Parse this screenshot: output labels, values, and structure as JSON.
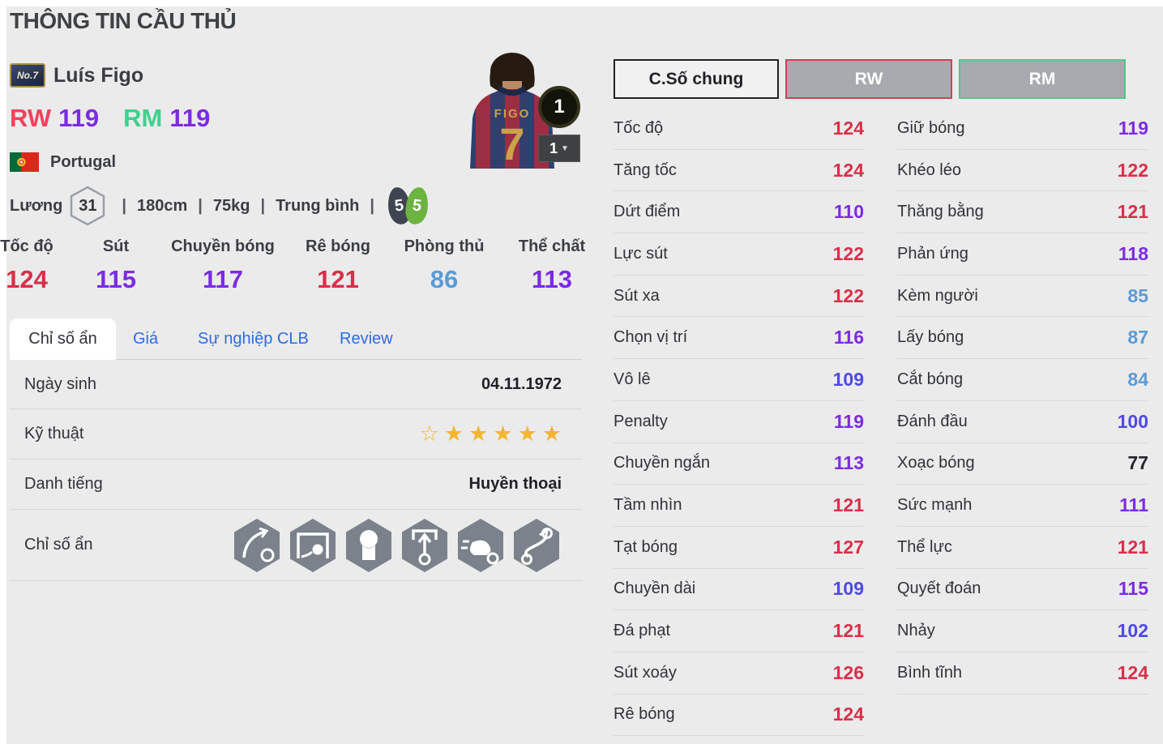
{
  "page": {
    "title": "THÔNG TIN CẦU THỦ"
  },
  "player": {
    "badge": "No.7",
    "name": "Luís Figo",
    "positions": [
      {
        "label": "RW",
        "value": "119"
      },
      {
        "label": "RM",
        "value": "119"
      }
    ],
    "nation": "Portugal",
    "wage_label": "Lương",
    "wage": "31",
    "height": "180cm",
    "weight": "75kg",
    "body_type": "Trung bình",
    "separator": "|",
    "weak_foot_left": "5",
    "weak_foot_right": "5",
    "jersey_name": "FIGO",
    "jersey_number": "7",
    "overall_badge": "1",
    "card_count": "1",
    "card_count_caret": "▼"
  },
  "main_stats": [
    {
      "label": "Tốc độ",
      "value": "124"
    },
    {
      "label": "Sút",
      "value": "115"
    },
    {
      "label": "Chuyền bóng",
      "value": "117"
    },
    {
      "label": "Rê bóng",
      "value": "121"
    },
    {
      "label": "Phòng thủ",
      "value": "86"
    },
    {
      "label": "Thể chất",
      "value": "113"
    }
  ],
  "tabs": [
    {
      "label": "Chỉ số ẩn",
      "active": true
    },
    {
      "label": "Giá",
      "active": false
    },
    {
      "label": "Sự nghiệp CLB",
      "active": false
    },
    {
      "label": "Review",
      "active": false
    }
  ],
  "info_rows": {
    "birth_label": "Ngày sinh",
    "birth_value": "04.11.1972",
    "skill_label": "Kỹ thuật",
    "skill_stars_empty": 1,
    "skill_stars_filled": 5,
    "fame_label": "Danh tiếng",
    "fame_value": "Huyền thoại",
    "hidden_label": "Chỉ số ẩn",
    "hidden_icons": [
      "curve-pass-icon",
      "power-shot-icon",
      "header-icon",
      "through-pass-icon",
      "speed-dribble-icon",
      "trick-dribble-icon"
    ]
  },
  "detail": {
    "buttons": [
      {
        "label": "C.Số chung",
        "style": "default"
      },
      {
        "label": "RW",
        "style": "rw"
      },
      {
        "label": "RM",
        "style": "rm"
      }
    ],
    "left": [
      {
        "label": "Tốc độ",
        "value": "124"
      },
      {
        "label": "Tăng tốc",
        "value": "124"
      },
      {
        "label": "Dứt điểm",
        "value": "110"
      },
      {
        "label": "Lực sút",
        "value": "122"
      },
      {
        "label": "Sút xa",
        "value": "122"
      },
      {
        "label": "Chọn vị trí",
        "value": "116"
      },
      {
        "label": "Vô lê",
        "value": "109"
      },
      {
        "label": "Penalty",
        "value": "119"
      },
      {
        "label": "Chuyền ngắn",
        "value": "113"
      },
      {
        "label": "Tầm nhìn",
        "value": "121"
      },
      {
        "label": "Tạt bóng",
        "value": "127"
      },
      {
        "label": "Chuyền dài",
        "value": "109"
      },
      {
        "label": "Đá phạt",
        "value": "121"
      },
      {
        "label": "Sút xoáy",
        "value": "126"
      },
      {
        "label": "Rê bóng",
        "value": "124"
      }
    ],
    "right": [
      {
        "label": "Giữ bóng",
        "value": "119"
      },
      {
        "label": "Khéo léo",
        "value": "122"
      },
      {
        "label": "Thăng bằng",
        "value": "121"
      },
      {
        "label": "Phản ứng",
        "value": "118"
      },
      {
        "label": "Kèm người",
        "value": "85"
      },
      {
        "label": "Lấy bóng",
        "value": "87"
      },
      {
        "label": "Cắt bóng",
        "value": "84"
      },
      {
        "label": "Đánh đầu",
        "value": "100"
      },
      {
        "label": "Xoạc bóng",
        "value": "77"
      },
      {
        "label": "Sức mạnh",
        "value": "111"
      },
      {
        "label": "Thể lực",
        "value": "121"
      },
      {
        "label": "Quyết đoán",
        "value": "115"
      },
      {
        "label": "Nhảy",
        "value": "102"
      },
      {
        "label": "Bình tĩnh",
        "value": "124"
      }
    ]
  },
  "colors": {
    "tier_red": "#d8304a",
    "tier_purple": "#7b2ce2",
    "tier_indigo": "#4f49e6",
    "tier_azure": "#5b9bd5",
    "tier_dark": "#23262b",
    "pos_rw": "#f0445c",
    "pos_rm": "#3fd08f",
    "pos_rating": "#7b2ce2",
    "tab_link": "#2e6be4",
    "star": "#f2b634",
    "btn_rw_border": "#cb4257",
    "btn_rm_border": "#50c78c"
  }
}
